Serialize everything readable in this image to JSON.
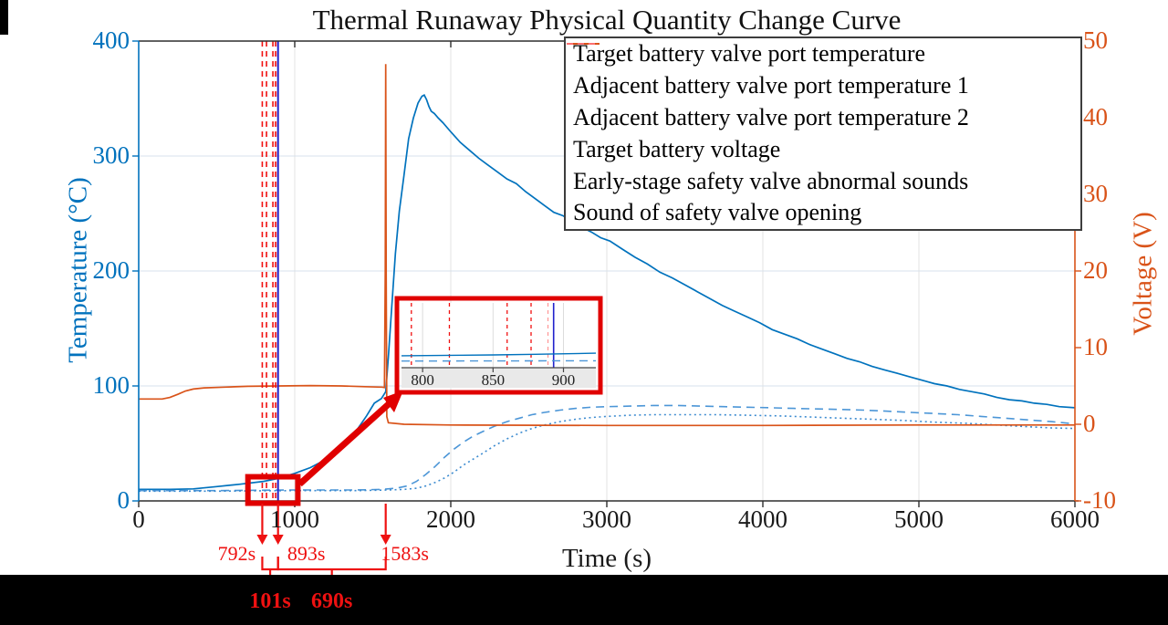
{
  "title": "Thermal Runaway Physical Quantity Change Curve",
  "axes": {
    "x": {
      "label": "Time (s)",
      "min": 0,
      "max": 6000,
      "tick_values": [
        0,
        1000,
        2000,
        3000,
        4000,
        5000,
        6000
      ]
    },
    "y_left": {
      "label": "Temperature (°C)",
      "min": 0,
      "max": 400,
      "tick_values": [
        0,
        100,
        200,
        300,
        400
      ],
      "color": "#0072BD"
    },
    "y_right": {
      "label": "Voltage (V)",
      "min": -10,
      "max": 50,
      "tick_values": [
        -10,
        0,
        10,
        20,
        30,
        40,
        50
      ],
      "color": "#D95319"
    }
  },
  "legend": {
    "entries": [
      {
        "label": "Target battery valve port temperature",
        "color": "#0072BD",
        "style": "solid",
        "width": 2
      },
      {
        "label": "Adjacent battery valve port temperature 1",
        "color": "#4C96D7",
        "style": "dashed",
        "width": 2
      },
      {
        "label": "Adjacent battery valve port temperature 2",
        "color": "#3C8BD0",
        "style": "dotted",
        "width": 2
      },
      {
        "label": "Target battery voltage",
        "color": "#D95319",
        "style": "solid",
        "width": 2
      },
      {
        "label": "Early-stage safety valve abnormal sounds",
        "color": "#F01010",
        "style": "dashed",
        "width": 2
      },
      {
        "label": "Sound of safety valve opening",
        "color": "#FF9090",
        "style": "dashed",
        "width": 1.4
      }
    ]
  },
  "chart_data": {
    "type": "line",
    "title": "Thermal Runaway Physical Quantity Change Curve",
    "xlabel": "Time (s)",
    "ylabel_left": "Temperature (°C)",
    "ylabel_right": "Voltage (V)",
    "xlim": [
      0,
      6000
    ],
    "ylim_left": [
      0,
      400
    ],
    "ylim_right": [
      -10,
      50
    ],
    "grid": true,
    "series": [
      {
        "name": "Target battery valve port temperature",
        "axis": "left",
        "color": "#0072BD",
        "style": "solid",
        "width": 1.7,
        "points": [
          [
            0,
            10
          ],
          [
            200,
            10
          ],
          [
            350,
            10.5
          ],
          [
            500,
            12.5
          ],
          [
            650,
            14.5
          ],
          [
            800,
            17
          ],
          [
            893,
            19.5
          ],
          [
            1000,
            24
          ],
          [
            1100,
            29
          ],
          [
            1200,
            36
          ],
          [
            1300,
            46
          ],
          [
            1400,
            62
          ],
          [
            1460,
            74
          ],
          [
            1510,
            85
          ],
          [
            1555,
            89
          ],
          [
            1583,
            95
          ],
          [
            1600,
            125
          ],
          [
            1620,
            165
          ],
          [
            1645,
            215
          ],
          [
            1670,
            252
          ],
          [
            1700,
            283
          ],
          [
            1730,
            315
          ],
          [
            1760,
            333
          ],
          [
            1790,
            346
          ],
          [
            1815,
            352
          ],
          [
            1830,
            353
          ],
          [
            1845,
            349
          ],
          [
            1860,
            343
          ],
          [
            1875,
            339
          ],
          [
            1895,
            337
          ],
          [
            1920,
            333
          ],
          [
            1950,
            329
          ],
          [
            2000,
            321
          ],
          [
            2060,
            312
          ],
          [
            2120,
            305
          ],
          [
            2180,
            298
          ],
          [
            2240,
            292
          ],
          [
            2300,
            286
          ],
          [
            2360,
            280
          ],
          [
            2420,
            276
          ],
          [
            2480,
            269
          ],
          [
            2540,
            263
          ],
          [
            2600,
            257
          ],
          [
            2660,
            251
          ],
          [
            2720,
            248
          ],
          [
            2780,
            243
          ],
          [
            2840,
            238
          ],
          [
            2900,
            234
          ],
          [
            2960,
            229
          ],
          [
            3020,
            226
          ],
          [
            3100,
            219
          ],
          [
            3180,
            212
          ],
          [
            3260,
            206
          ],
          [
            3340,
            199
          ],
          [
            3420,
            194
          ],
          [
            3500,
            188
          ],
          [
            3580,
            182
          ],
          [
            3660,
            176
          ],
          [
            3740,
            170
          ],
          [
            3820,
            165
          ],
          [
            3900,
            160
          ],
          [
            3980,
            155
          ],
          [
            4060,
            149
          ],
          [
            4140,
            145
          ],
          [
            4220,
            141
          ],
          [
            4300,
            136
          ],
          [
            4380,
            132
          ],
          [
            4460,
            128
          ],
          [
            4540,
            124
          ],
          [
            4620,
            121
          ],
          [
            4700,
            117
          ],
          [
            4780,
            114
          ],
          [
            4860,
            111
          ],
          [
            4940,
            108
          ],
          [
            5020,
            105
          ],
          [
            5100,
            102
          ],
          [
            5180,
            100
          ],
          [
            5260,
            97
          ],
          [
            5340,
            95
          ],
          [
            5420,
            93
          ],
          [
            5500,
            90
          ],
          [
            5580,
            88
          ],
          [
            5660,
            87
          ],
          [
            5740,
            85
          ],
          [
            5820,
            84
          ],
          [
            5900,
            82
          ],
          [
            6000,
            81
          ]
        ]
      },
      {
        "name": "Adjacent battery valve port temperature 1",
        "axis": "left",
        "color": "#4C96D7",
        "style": "dashed",
        "width": 1.6,
        "points": [
          [
            0,
            9
          ],
          [
            500,
            9
          ],
          [
            1000,
            9.5
          ],
          [
            1400,
            9.5
          ],
          [
            1550,
            10
          ],
          [
            1650,
            11
          ],
          [
            1720,
            13
          ],
          [
            1780,
            17
          ],
          [
            1840,
            23
          ],
          [
            1900,
            30
          ],
          [
            1960,
            38
          ],
          [
            2020,
            45
          ],
          [
            2080,
            51
          ],
          [
            2140,
            56
          ],
          [
            2200,
            60
          ],
          [
            2280,
            65
          ],
          [
            2360,
            69
          ],
          [
            2440,
            72
          ],
          [
            2520,
            75
          ],
          [
            2600,
            77
          ],
          [
            2700,
            79
          ],
          [
            2800,
            80.5
          ],
          [
            2900,
            81.5
          ],
          [
            3000,
            82
          ],
          [
            3150,
            82.5
          ],
          [
            3300,
            83
          ],
          [
            3450,
            83
          ],
          [
            3600,
            82.5
          ],
          [
            3750,
            82
          ],
          [
            3900,
            81.5
          ],
          [
            4050,
            81
          ],
          [
            4200,
            80.5
          ],
          [
            4350,
            80
          ],
          [
            4500,
            79.5
          ],
          [
            4650,
            79
          ],
          [
            4800,
            78
          ],
          [
            4950,
            77
          ],
          [
            5100,
            76
          ],
          [
            5250,
            75
          ],
          [
            5400,
            73.5
          ],
          [
            5550,
            72
          ],
          [
            5700,
            70.5
          ],
          [
            5850,
            69
          ],
          [
            6000,
            67
          ]
        ]
      },
      {
        "name": "Adjacent battery valve port temperature 2",
        "axis": "left",
        "color": "#3C8BD0",
        "style": "dotted",
        "width": 1.6,
        "points": [
          [
            0,
            8.5
          ],
          [
            500,
            8.5
          ],
          [
            1000,
            9
          ],
          [
            1400,
            9
          ],
          [
            1600,
            9.5
          ],
          [
            1700,
            10
          ],
          [
            1780,
            11
          ],
          [
            1840,
            13
          ],
          [
            1900,
            16
          ],
          [
            1960,
            20
          ],
          [
            2020,
            25
          ],
          [
            2080,
            31
          ],
          [
            2140,
            36
          ],
          [
            2200,
            41
          ],
          [
            2280,
            48
          ],
          [
            2360,
            54
          ],
          [
            2440,
            59
          ],
          [
            2520,
            63
          ],
          [
            2600,
            66
          ],
          [
            2700,
            69
          ],
          [
            2800,
            71
          ],
          [
            2900,
            72.5
          ],
          [
            3000,
            73.5
          ],
          [
            3150,
            74.5
          ],
          [
            3300,
            75
          ],
          [
            3500,
            75
          ],
          [
            3700,
            75
          ],
          [
            3900,
            74.5
          ],
          [
            4100,
            74
          ],
          [
            4300,
            73
          ],
          [
            4500,
            72
          ],
          [
            4700,
            71
          ],
          [
            4900,
            70
          ],
          [
            5100,
            68.5
          ],
          [
            5300,
            67.5
          ],
          [
            5500,
            66
          ],
          [
            5700,
            64.5
          ],
          [
            5850,
            63.5
          ],
          [
            6000,
            63
          ]
        ]
      },
      {
        "name": "Target battery voltage",
        "axis": "right",
        "color": "#D95319",
        "style": "solid",
        "width": 1.7,
        "points": [
          [
            0,
            3.3
          ],
          [
            150,
            3.3
          ],
          [
            200,
            3.5
          ],
          [
            250,
            3.9
          ],
          [
            300,
            4.35
          ],
          [
            350,
            4.6
          ],
          [
            420,
            4.75
          ],
          [
            550,
            4.85
          ],
          [
            700,
            4.95
          ],
          [
            900,
            5.0
          ],
          [
            1100,
            5.05
          ],
          [
            1300,
            5.0
          ],
          [
            1450,
            4.9
          ],
          [
            1560,
            4.85
          ],
          [
            1575,
            4.8
          ],
          [
            1580,
            20
          ],
          [
            1583,
            47
          ],
          [
            1586,
            20
          ],
          [
            1590,
            1
          ],
          [
            1600,
            0.2
          ],
          [
            1700,
            0
          ],
          [
            2000,
            -0.1
          ],
          [
            3000,
            -0.15
          ],
          [
            4000,
            -0.15
          ],
          [
            5000,
            -0.1
          ],
          [
            6000,
            -0.1
          ]
        ]
      }
    ],
    "event_markers": {
      "early_stage_abnormal_sound_times_s": [
        792,
        819,
        860,
        877
      ],
      "early_marker_color": "#F01010",
      "valve_opening_sound_time_s": 889,
      "valve_opening_sound_color": "#FF9090",
      "valve_opening_line_time_s": 893,
      "valve_opening_line_color": "#2222CC"
    },
    "inset": {
      "x_range": [
        785,
        923
      ],
      "x_ticks": [
        800,
        850,
        900
      ],
      "y_range": [
        0,
        90
      ],
      "series": [
        {
          "name": "Target battery valve port temperature",
          "color": "#0072BD",
          "style": "solid",
          "points": [
            [
              785,
              16.6
            ],
            [
              820,
              17.3
            ],
            [
              850,
              17.8
            ],
            [
              880,
              18.6
            ],
            [
              893,
              19.2
            ],
            [
              923,
              20.2
            ]
          ]
        },
        {
          "name": "Adjacent battery valve port temperature 1",
          "color": "#4C96D7",
          "style": "dashed",
          "points": [
            [
              785,
              9.3
            ],
            [
              923,
              9.6
            ]
          ]
        }
      ]
    },
    "highlight_region": {
      "t_from": 700,
      "t_to": 1020,
      "temp_from": -2,
      "temp_to": 21
    }
  },
  "annotations": {
    "time_arrows": [
      {
        "t": 792,
        "label": "792s",
        "side": "left"
      },
      {
        "t": 893,
        "label": "893s",
        "side": "right"
      },
      {
        "t": 1583,
        "label": "1583s",
        "side": "right"
      }
    ],
    "intervals": [
      {
        "label": "101s",
        "from": 792,
        "to": 893
      },
      {
        "label": "690s",
        "from": 893,
        "to": 1583
      }
    ],
    "color": "#EE1111"
  }
}
